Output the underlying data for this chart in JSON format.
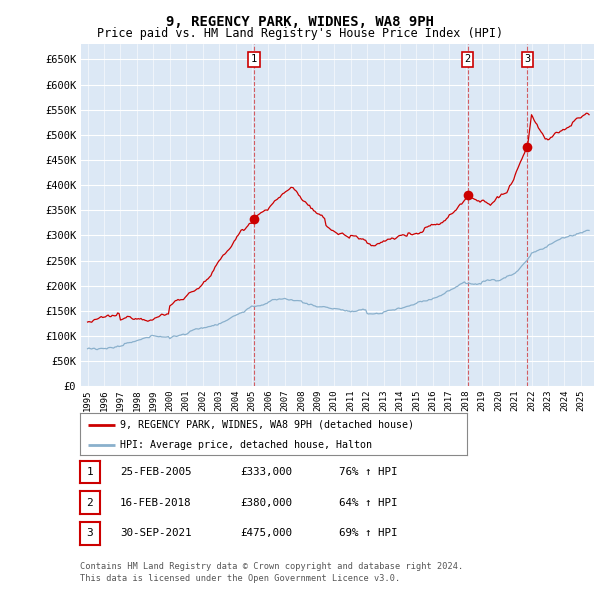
{
  "title": "9, REGENCY PARK, WIDNES, WA8 9PH",
  "subtitle": "Price paid vs. HM Land Registry's House Price Index (HPI)",
  "ylabel_ticks": [
    "£0",
    "£50K",
    "£100K",
    "£150K",
    "£200K",
    "£250K",
    "£300K",
    "£350K",
    "£400K",
    "£450K",
    "£500K",
    "£550K",
    "£600K",
    "£650K"
  ],
  "ytick_values": [
    0,
    50000,
    100000,
    150000,
    200000,
    250000,
    300000,
    350000,
    400000,
    450000,
    500000,
    550000,
    600000,
    650000
  ],
  "ylim": [
    0,
    680000
  ],
  "xlim_start": 1994.6,
  "xlim_end": 2025.8,
  "sale_color": "#cc0000",
  "hpi_color": "#8ab0cc",
  "chart_bg": "#dce8f5",
  "vline_color": "#cc0000",
  "background_color": "#ffffff",
  "grid_color": "#ffffff",
  "sales": [
    {
      "date_num": 2005.12,
      "price": 333000,
      "label": "1"
    },
    {
      "date_num": 2018.12,
      "price": 380000,
      "label": "2"
    },
    {
      "date_num": 2021.75,
      "price": 475000,
      "label": "3"
    }
  ],
  "legend_sale_label": "9, REGENCY PARK, WIDNES, WA8 9PH (detached house)",
  "legend_hpi_label": "HPI: Average price, detached house, Halton",
  "table_rows": [
    [
      "1",
      "25-FEB-2005",
      "£333,000",
      "76% ↑ HPI"
    ],
    [
      "2",
      "16-FEB-2018",
      "£380,000",
      "64% ↑ HPI"
    ],
    [
      "3",
      "30-SEP-2021",
      "£475,000",
      "69% ↑ HPI"
    ]
  ],
  "footer": "Contains HM Land Registry data © Crown copyright and database right 2024.\nThis data is licensed under the Open Government Licence v3.0.",
  "title_fontsize": 10,
  "subtitle_fontsize": 8.5,
  "tick_fontsize": 7.5
}
